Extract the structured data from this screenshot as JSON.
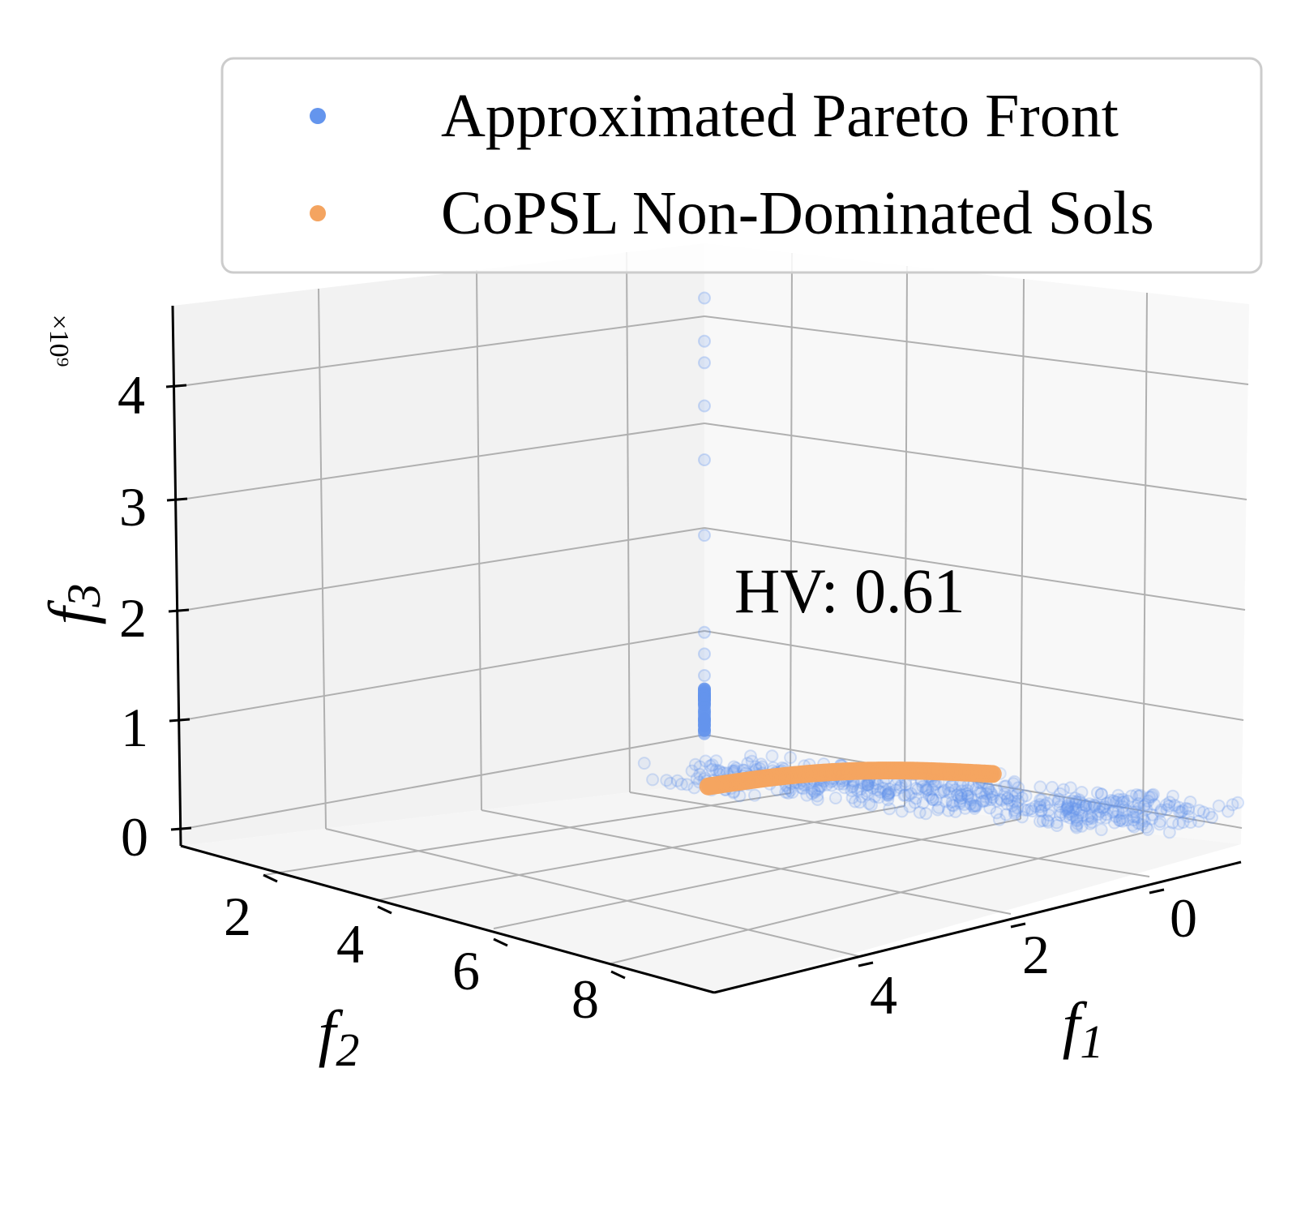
{
  "chart_data": {
    "type": "scatter",
    "projection": "3d",
    "annotation": "HV: 0.61",
    "z_offset_label": "×10⁹",
    "legend_placement": "top-right",
    "grid": true,
    "axes": {
      "x": {
        "label": "f1",
        "range": [
          -0.5,
          5.5
        ],
        "ticks": [
          0,
          2,
          4
        ],
        "tick_labels": [
          "0",
          "2",
          "4"
        ]
      },
      "y": {
        "label": "f2",
        "range": [
          1,
          9
        ],
        "ticks": [
          2,
          4,
          6,
          8
        ],
        "tick_labels": [
          "2",
          "4",
          "6",
          "8"
        ]
      },
      "z": {
        "label": "f3",
        "range": [
          -0.3,
          4.7
        ],
        "ticks": [
          0,
          1,
          2,
          3,
          4
        ],
        "tick_labels": [
          "0",
          "1",
          "2",
          "3",
          "4"
        ]
      }
    },
    "series": [
      {
        "name": "Approximated Pareto Front",
        "color": "#6495ED",
        "style": "faint-scatter",
        "description_points": {
          "vertical_spike": [
            {
              "f1": 0.3,
              "f2": 5.5,
              "f3": 4.6
            },
            {
              "f1": 0.3,
              "f2": 5.5,
              "f3": 4.2
            },
            {
              "f1": 0.3,
              "f2": 5.5,
              "f3": 4.0
            },
            {
              "f1": 0.3,
              "f2": 5.5,
              "f3": 3.6
            },
            {
              "f1": 0.3,
              "f2": 5.5,
              "f3": 3.1
            },
            {
              "f1": 0.3,
              "f2": 5.5,
              "f3": 2.4
            },
            {
              "f1": 0.3,
              "f2": 5.5,
              "f3": 1.5
            },
            {
              "f1": 0.3,
              "f2": 5.5,
              "f3": 1.3
            },
            {
              "f1": 0.3,
              "f2": 5.5,
              "f3": 1.1
            },
            {
              "f1": 0.3,
              "f2": 5.5,
              "f3": 0.9
            },
            {
              "f1": 0.3,
              "f2": 5.5,
              "f3": 0.75
            }
          ],
          "floor_band_start": {
            "f1": 0.3,
            "f2": 5.5,
            "f3": 0.1
          },
          "floor_band_end": {
            "f1": 3.2,
            "f2": 2.0,
            "f3": 0.05
          },
          "left_tail_f2": [
            1.5,
            2.2,
            2.9,
            3.5
          ]
        }
      },
      {
        "name": "CoPSL Non-Dominated Sols",
        "color": "#F4A460",
        "style": "dense-curve",
        "curve_f2_range": [
          1.6,
          5.5
        ],
        "curve_f1": 0.35,
        "curve_f3_range": [
          0.05,
          0.15
        ]
      }
    ]
  }
}
